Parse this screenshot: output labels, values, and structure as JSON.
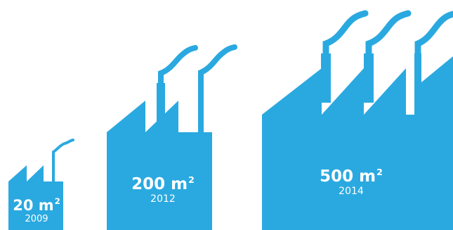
{
  "colors": {
    "factory": "#2aa9e0",
    "background": "#ffffff",
    "text": "#ffffff"
  },
  "factories": [
    {
      "area_value": "20 m",
      "area_sup": "2",
      "year": "2009",
      "chimneys": 1
    },
    {
      "area_value": "200 m",
      "area_sup": "2",
      "year": "2012",
      "chimneys": 2
    },
    {
      "area_value": "500 m",
      "area_sup": "2",
      "year": "2014",
      "chimneys": 3
    }
  ]
}
